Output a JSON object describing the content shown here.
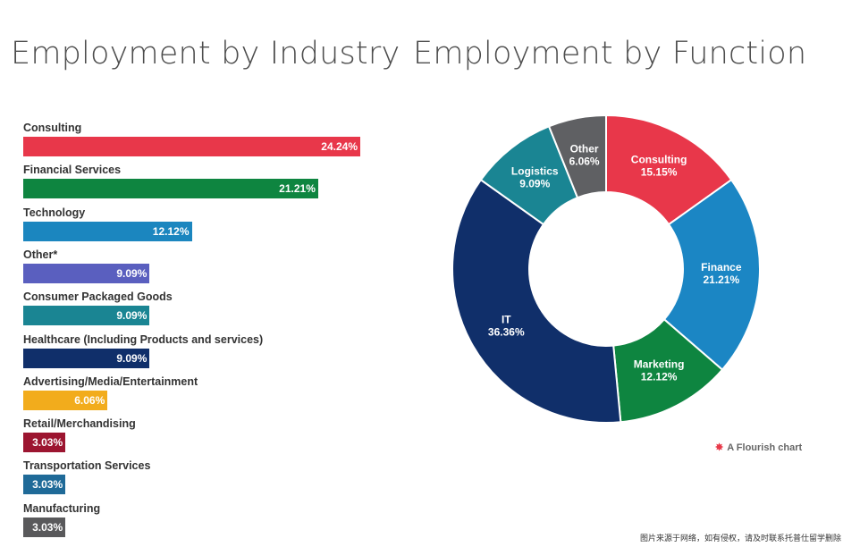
{
  "chart_data": [
    {
      "type": "bar",
      "orientation": "horizontal",
      "title": "Employment by Industry",
      "categories": [
        "Consulting",
        "Financial Services",
        "Technology",
        "Other*",
        "Consumer Packaged Goods",
        "Healthcare (Including Products and services)",
        "Advertising/Media/Entertainment",
        "Retail/Merchandising",
        "Transportation Services",
        "Manufacturing"
      ],
      "values": [
        24.24,
        21.21,
        12.12,
        9.09,
        9.09,
        9.09,
        6.06,
        3.03,
        3.03,
        3.03
      ],
      "value_labels": [
        "24.24%",
        "21.21%",
        "12.12%",
        "9.09%",
        "9.09%",
        "9.09%",
        "6.06%",
        "3.03%",
        "3.03%",
        "3.03%"
      ],
      "colors": [
        "#e8374a",
        "#0e8540",
        "#1b86bf",
        "#5a5fbf",
        "#1a8593",
        "#102f6a",
        "#f2ac1c",
        "#9c1530",
        "#1f6a98",
        "#59595b"
      ],
      "xlim": [
        0,
        24.24
      ],
      "grid": false,
      "legend": "none"
    },
    {
      "type": "pie",
      "style": "donut",
      "title": "Employment by Function",
      "slices": [
        {
          "label": "Consulting",
          "value": 15.15,
          "value_label": "15.15%",
          "color": "#e8374a"
        },
        {
          "label": "Finance",
          "value": 21.21,
          "value_label": "21.21%",
          "color": "#1b86c4"
        },
        {
          "label": "Marketing",
          "value": 12.12,
          "value_label": "12.12%",
          "color": "#0e8540"
        },
        {
          "label": "IT",
          "value": 36.36,
          "value_label": "36.36%",
          "color": "#102f6a"
        },
        {
          "label": "Logistics",
          "value": 9.09,
          "value_label": "9.09%",
          "color": "#1a8593"
        },
        {
          "label": "Other",
          "value": 6.06,
          "value_label": "6.06%",
          "color": "#5f6063"
        }
      ],
      "legend": "none"
    }
  ],
  "footer": {
    "flourish_label": "A Flourish chart",
    "flourish_icon": "flourish-logo-icon",
    "watermark": "图片来源于网络，如有侵权，请及时联系托普仕留学删除"
  }
}
